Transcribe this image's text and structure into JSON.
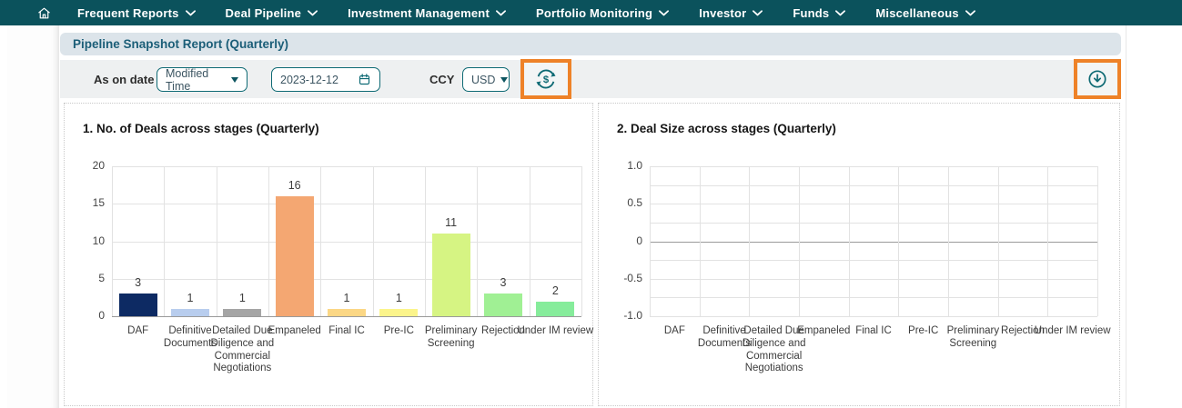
{
  "colors": {
    "nav_bg": "#0b525c",
    "accent_teal": "#0e6a74",
    "header_bg": "#dce4ea",
    "header_text": "#1b5e78",
    "filter_bg": "#eef0f1",
    "highlight_orange": "#ee8228"
  },
  "icons": {
    "home": "home-icon",
    "nav_chevron": "chevron-down-icon",
    "calendar": "calendar-icon",
    "refresh": "currency-refresh-icon",
    "download": "download-icon"
  },
  "nav": {
    "items": [
      {
        "label": "Frequent Reports"
      },
      {
        "label": "Deal Pipeline"
      },
      {
        "label": "Investment Management"
      },
      {
        "label": "Portfolio Monitoring"
      },
      {
        "label": "Investor"
      },
      {
        "label": "Funds"
      },
      {
        "label": "Miscellaneous"
      }
    ]
  },
  "header": {
    "title": "Pipeline Snapshot Report (Quarterly)"
  },
  "filter_bar": {
    "as_on_date_label": "As on date",
    "date_type": {
      "value": "Modified Time"
    },
    "date": {
      "value": "2023-12-12"
    },
    "ccy_label": "CCY",
    "ccy": {
      "value": "USD"
    }
  },
  "chart_data": [
    {
      "type": "bar",
      "title": "1. No. of Deals across stages (Quarterly)",
      "categories": [
        "DAF",
        "Definitive Documents",
        "Detailed Due Diligence and Commercial Negotiations",
        "Empaneled",
        "Final IC",
        "Pre-IC",
        "Preliminary Screening",
        "Rejection",
        "Under IM review"
      ],
      "values": [
        3,
        1,
        1,
        16,
        1,
        1,
        11,
        3,
        2
      ],
      "bar_colors": [
        "#0d2a63",
        "#b8cdee",
        "#a5a5a5",
        "#f4a772",
        "#fbd785",
        "#fbf48b",
        "#d6f483",
        "#a0f094",
        "#86ec9b"
      ],
      "ylim": [
        0,
        20
      ],
      "yticks": [
        0,
        5,
        10,
        15,
        20
      ],
      "ytick_labels": [
        "0",
        "5",
        "10",
        "15",
        "20"
      ],
      "grid": true,
      "value_labels": true,
      "legend": "none"
    },
    {
      "type": "bar",
      "title": "2. Deal Size across stages (Quarterly)",
      "categories": [
        "DAF",
        "Definitive Documents",
        "Detailed Due Diligence and Commercial Negotiations",
        "Empaneled",
        "Final IC",
        "Pre-IC",
        "Preliminary Screening",
        "Rejection",
        "Under IM review"
      ],
      "values": [],
      "bar_colors": [],
      "ylim": [
        -1.0,
        1.0
      ],
      "yticks": [
        -1.0,
        -0.5,
        0,
        0.5,
        1.0
      ],
      "ytick_labels": [
        "-1.0",
        "-0.5",
        "0",
        "0.5",
        "1.0"
      ],
      "minor_step": 0.25,
      "grid": true,
      "value_labels": false,
      "legend": "none"
    }
  ]
}
